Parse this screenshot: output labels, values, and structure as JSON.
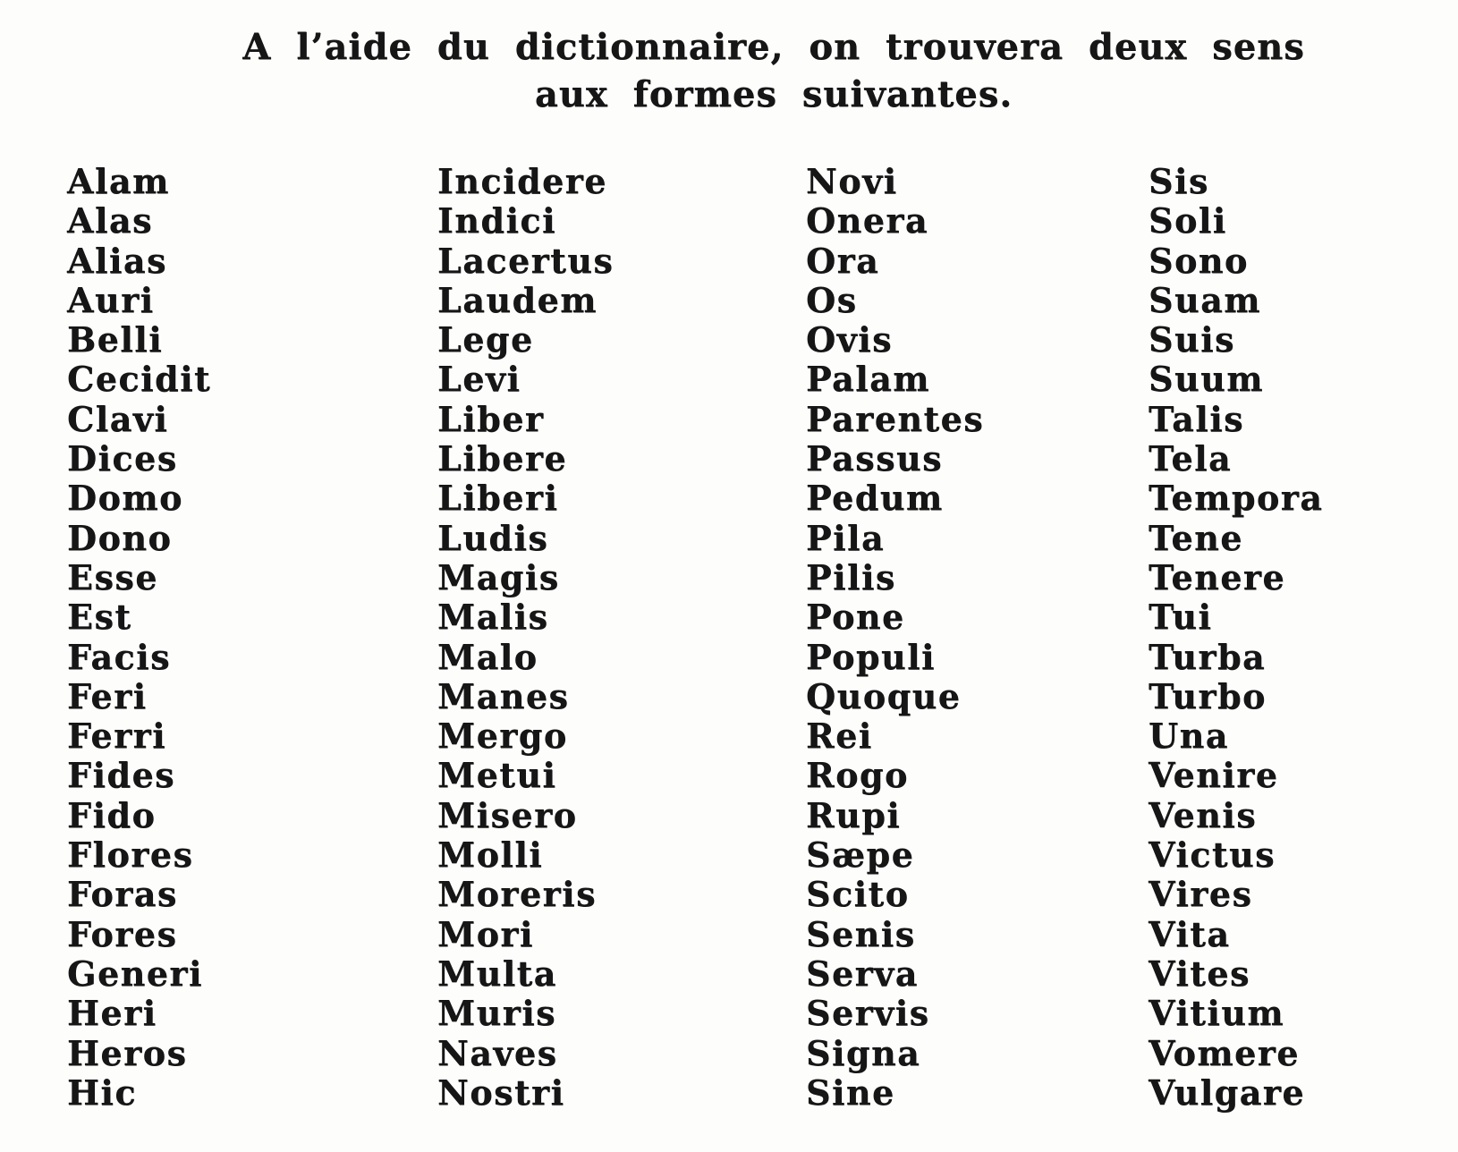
{
  "document": {
    "heading": {
      "line1": "A l’aide du dictionnaire, on trouvera deux sens",
      "line2": "aux formes suivantes."
    },
    "word_columns": [
      [
        "Alam",
        "Alas",
        "Alias",
        "Auri",
        "Belli",
        "Cecidit",
        "Clavi",
        "Dices",
        "Domo",
        "Dono",
        "Esse",
        "Est",
        "Facis",
        "Feri",
        "Ferri",
        "Fides",
        "Fido",
        "Flores",
        "Foras",
        "Fores",
        "Generi",
        "Heri",
        "Heros",
        "Hic"
      ],
      [
        "Incidere",
        "Indici",
        "Lacertus",
        "Laudem",
        "Lege",
        "Levi",
        "Liber",
        "Libere",
        "Liberi",
        "Ludis",
        "Magis",
        "Malis",
        "Malo",
        "Manes",
        "Mergo",
        "Metui",
        "Misero",
        "Molli",
        "Moreris",
        "Mori",
        "Multa",
        "Muris",
        "Naves",
        "Nostri"
      ],
      [
        "Novi",
        "Onera",
        "Ora",
        "Os",
        "Ovis",
        "Palam",
        "Parentes",
        "Passus",
        "Pedum",
        "Pila",
        "Pilis",
        "Pone",
        "Populi",
        "Quoque",
        "Rei",
        "Rogo",
        "Rupi",
        "Sæpe",
        "Scito",
        "Senis",
        "Serva",
        "Servis",
        "Signa",
        "Sine"
      ],
      [
        "Sis",
        "Soli",
        "Sono",
        "Suam",
        "Suis",
        "Suum",
        "Talis",
        "Tela",
        "Tempora",
        "Tene",
        "Tenere",
        "Tui",
        "Turba",
        "Turbo",
        "Una",
        "Venire",
        "Venis",
        "Victus",
        "Vires",
        "Vita",
        "Vites",
        "Vitium",
        "Vomere",
        "Vulgare"
      ]
    ],
    "colors": {
      "ink": "#161616",
      "paper": "#fdfdfc"
    }
  }
}
